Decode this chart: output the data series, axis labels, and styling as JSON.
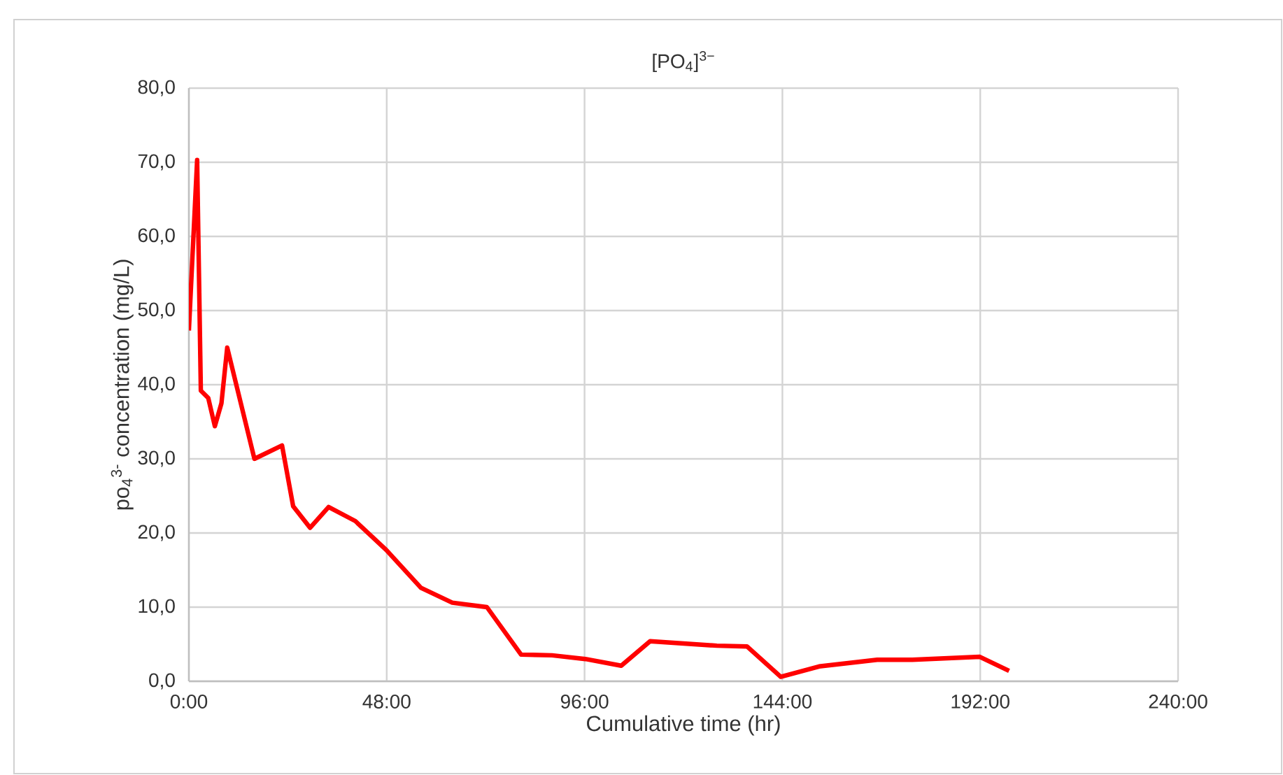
{
  "chart_data": {
    "type": "line",
    "title": "[PO$_{4}$]$^{3−}$",
    "xlabel": "Cumulative time (hr)",
    "ylabel": "po$_{4}$$^{3-}$ concentration (mg/L)",
    "xlim": [
      0,
      240
    ],
    "xticks": [
      {
        "value": 0,
        "label": "0:00"
      },
      {
        "value": 48,
        "label": "48:00"
      },
      {
        "value": 96,
        "label": "96:00"
      },
      {
        "value": 144,
        "label": "144:00"
      },
      {
        "value": 192,
        "label": "192:00"
      },
      {
        "value": 240,
        "label": "240:00"
      }
    ],
    "ylim": [
      0,
      80
    ],
    "yticks": [
      {
        "value": 0,
        "label": "0,0"
      },
      {
        "value": 10,
        "label": "10,0"
      },
      {
        "value": 20,
        "label": "20,0"
      },
      {
        "value": 30,
        "label": "30,0"
      },
      {
        "value": 40,
        "label": "40,0"
      },
      {
        "value": 50,
        "label": "50,0"
      },
      {
        "value": 60,
        "label": "60,0"
      },
      {
        "value": 70,
        "label": "70,0"
      },
      {
        "value": 80,
        "label": "80,0"
      }
    ],
    "grid": true,
    "legend": false,
    "marker": "none",
    "line_style": "solid",
    "series": [
      {
        "color": "#ff0000",
        "x": [
          0,
          2.0,
          2.9,
          4.7,
          6.3,
          7.9,
          9.3,
          15.9,
          22.6,
          25.3,
          29.4,
          33.9,
          40.4,
          47.9,
          56.3,
          63.9,
          72.3,
          80.6,
          88.1,
          96.2,
          104.9,
          111.9,
          128.1,
          135.4,
          143.6,
          152.9,
          167.0,
          175.5,
          191.9,
          199.0
        ],
        "values": [
          47.3,
          70.3,
          39.2,
          38.2,
          34.4,
          37.5,
          45.0,
          30.0,
          31.8,
          23.6,
          20.7,
          23.5,
          21.6,
          17.7,
          12.6,
          10.6,
          10.0,
          3.6,
          3.5,
          3.0,
          2.1,
          5.4,
          4.8,
          4.7,
          0.6,
          2.0,
          2.9,
          2.9,
          3.3,
          1.4
        ]
      }
    ]
  }
}
